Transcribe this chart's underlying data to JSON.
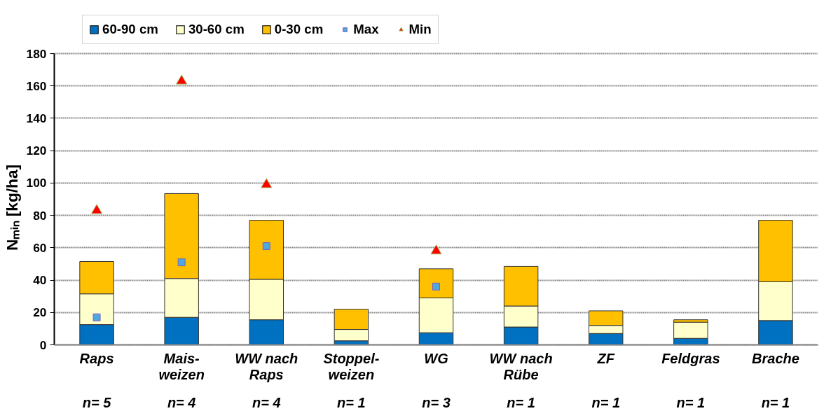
{
  "chart_data": {
    "type": "bar",
    "stacked": true,
    "ylabel": "Nₘᵢₙ [kg/ha]",
    "categories": [
      "Raps",
      "Mais-\nweizen",
      "WW nach\nRaps",
      "Stoppel-\nweizen",
      "WG",
      "WW nach\nRübe",
      "ZF",
      "Feldgras",
      "Brache"
    ],
    "series": [
      {
        "name": "60-90 cm",
        "color": "#0070c0",
        "values": [
          12.5,
          17,
          15.5,
          2.5,
          7.5,
          11,
          7,
          4,
          15
        ]
      },
      {
        "name": "30-60 cm",
        "color": "#ffffcc",
        "values": [
          19,
          24,
          25,
          7,
          21.5,
          13,
          5,
          10,
          24
        ]
      },
      {
        "name": "0-30 cm",
        "color": "#ffc000",
        "values": [
          20,
          52.5,
          36.5,
          12.5,
          18,
          24.5,
          9,
          1.5,
          38
        ]
      },
      {
        "name": "Max",
        "type": "scatter",
        "marker": "square",
        "color": "#4fa8e0",
        "values": [
          17,
          51,
          61,
          null,
          36,
          null,
          null,
          null,
          null
        ]
      },
      {
        "name": "Min",
        "type": "scatter",
        "marker": "triangle",
        "color": "#ff0000",
        "values": [
          83,
          163,
          99,
          null,
          58,
          null,
          null,
          null,
          null
        ]
      }
    ],
    "annotations": [
      "n= 5",
      "n= 4",
      "n= 4",
      "n= 1",
      "n= 3",
      "n= 1",
      "n= 1",
      "n= 1",
      "n= 1"
    ],
    "ylim": [
      0,
      180
    ],
    "yticks": [
      0,
      20,
      40,
      60,
      80,
      100,
      120,
      140,
      160,
      180
    ],
    "grid": "y",
    "legend": "top"
  }
}
